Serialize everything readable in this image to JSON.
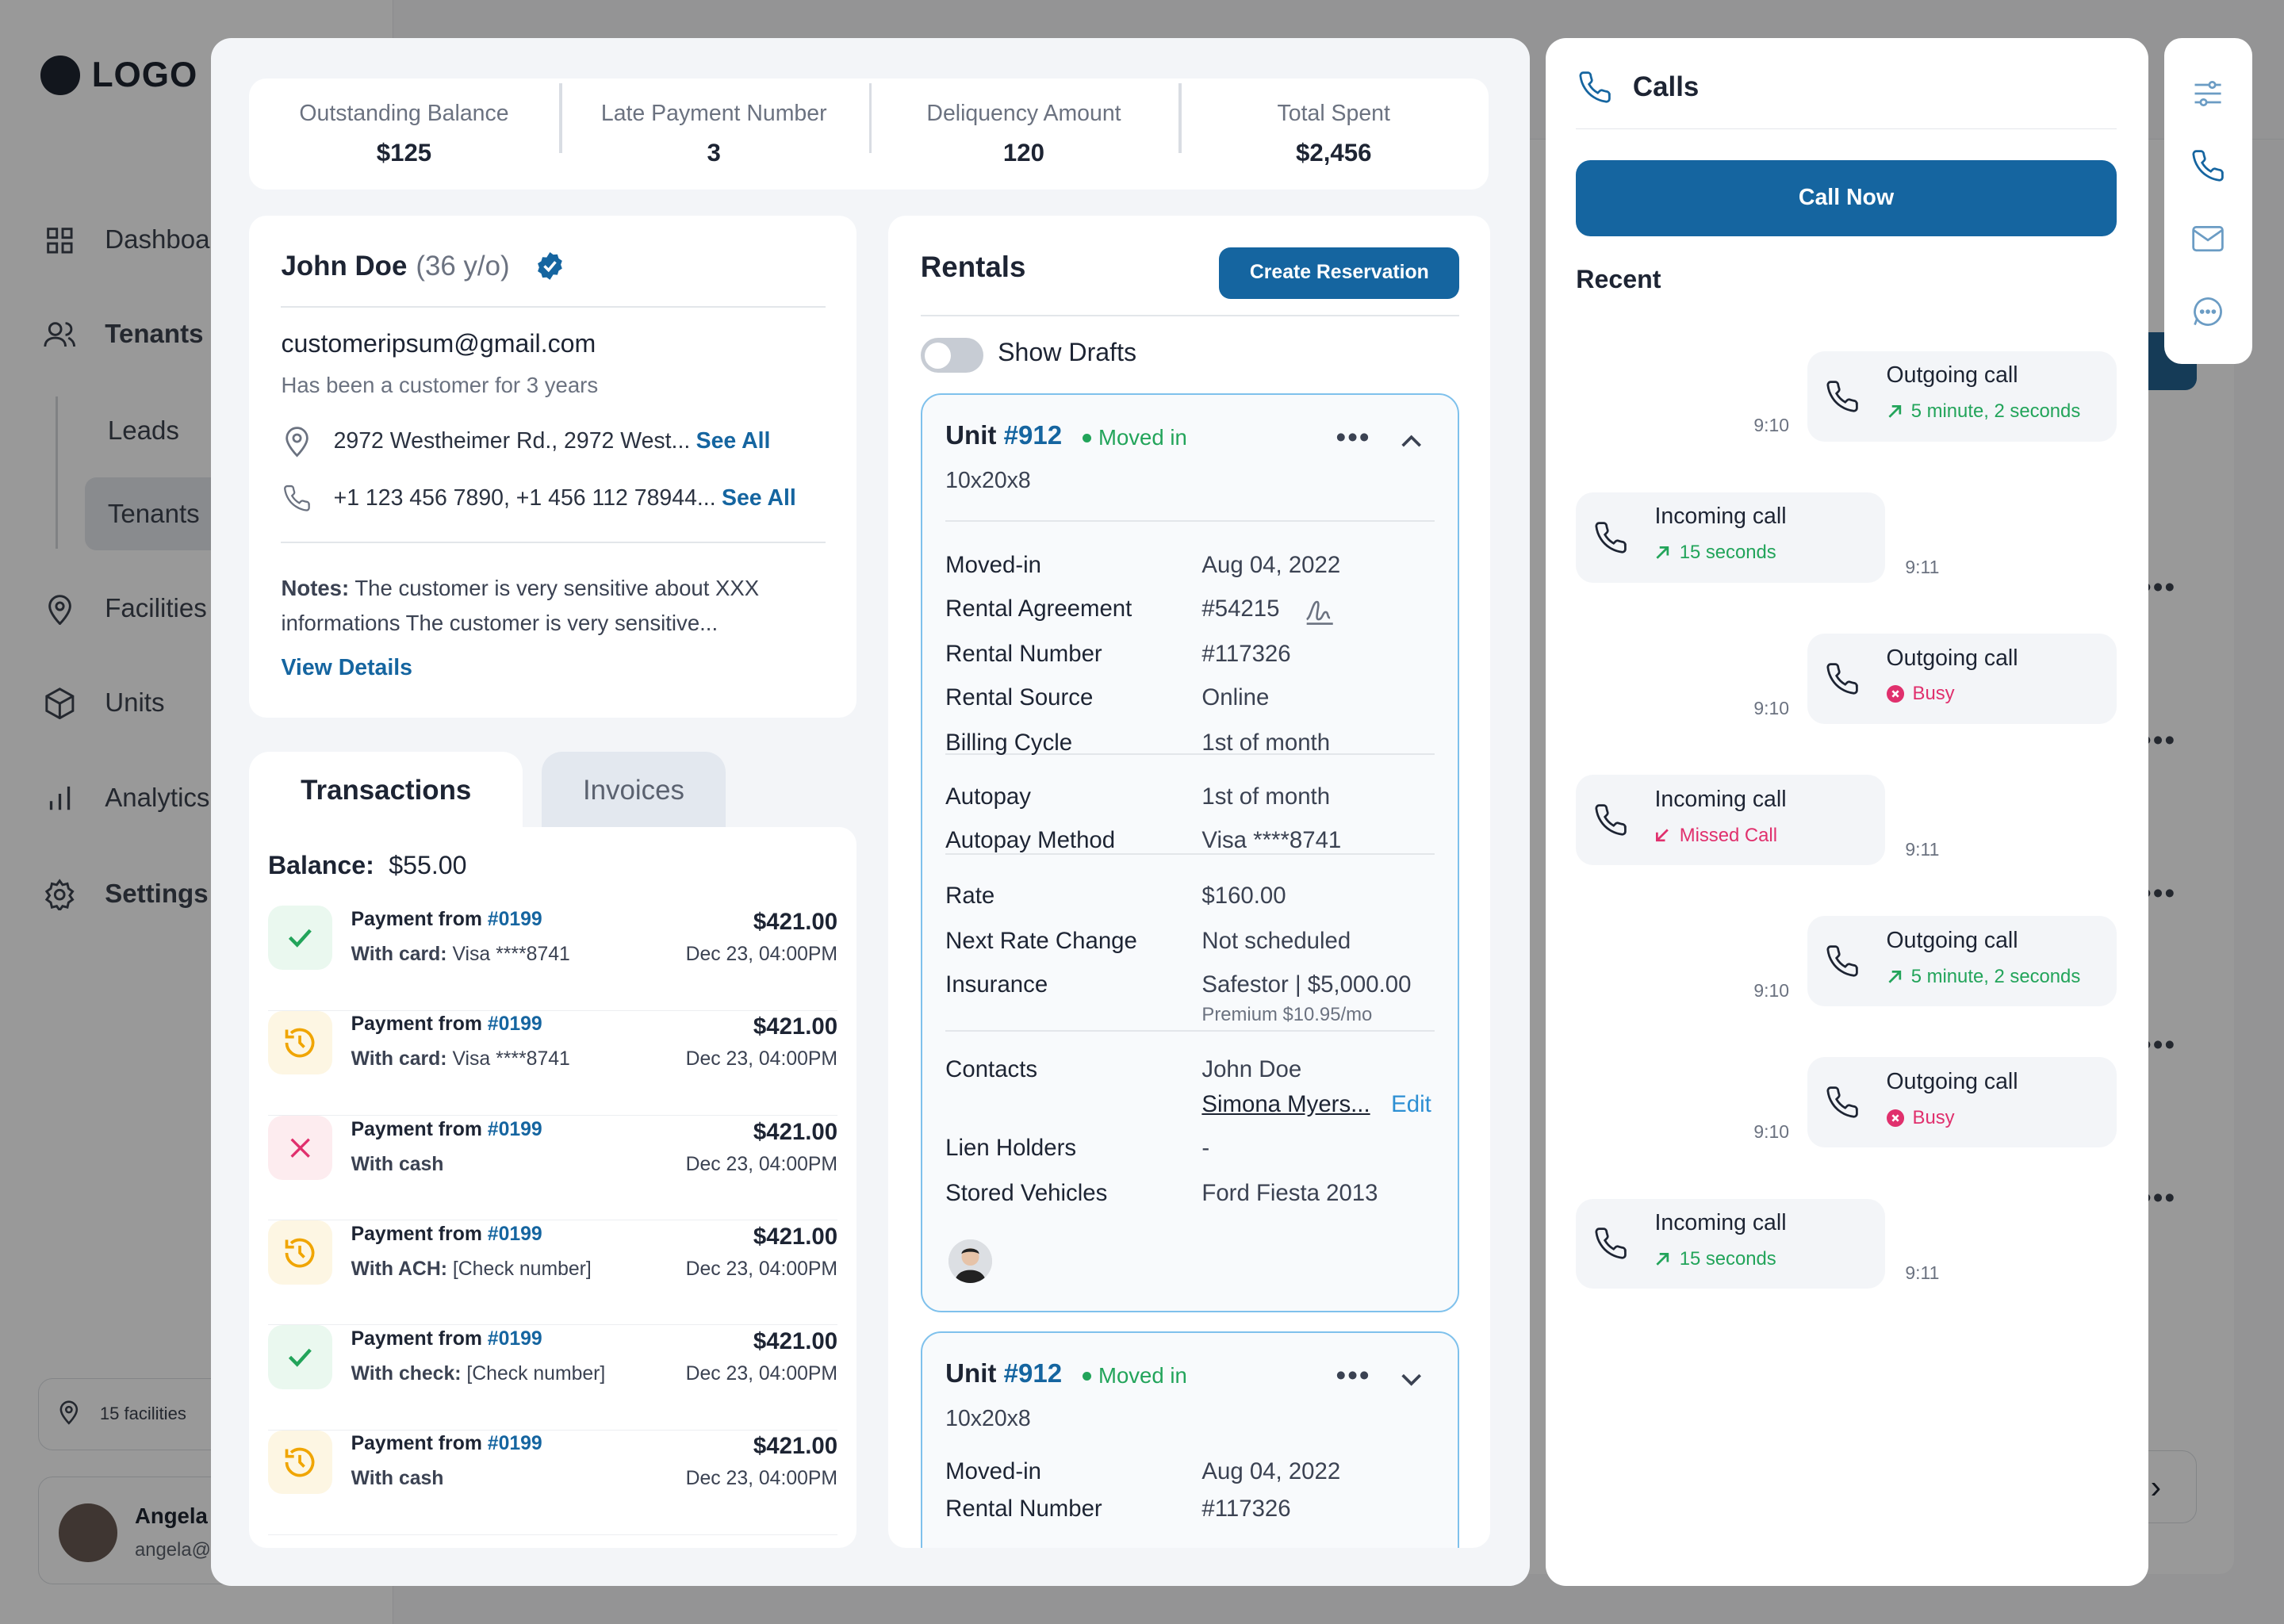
{
  "background": {
    "logo": "LOGO",
    "nav": [
      "Dashboard",
      "Tenants",
      "Facilities",
      "Units",
      "Analytics",
      "Settings"
    ],
    "sub_nav": [
      "Leads",
      "Tenants"
    ],
    "facilities_count": "15 facilities",
    "user_name": "Angela",
    "user_email": "angela@"
  },
  "stats": [
    {
      "label": "Outstanding Balance",
      "value": "$125"
    },
    {
      "label": "Late Payment Number",
      "value": "3"
    },
    {
      "label": "Deliquency Amount",
      "value": "120"
    },
    {
      "label": "Total Spent",
      "value": "$2,456"
    }
  ],
  "profile": {
    "name": "John Doe",
    "age": "(36 y/o)",
    "email": "customeripsum@gmail.com",
    "since": "Has been a customer for 3 years",
    "address": "2972 Westheimer Rd., 2972 West...",
    "phones": "+1 123 456 7890, +1 456 112 78944...",
    "see_all": "See All",
    "notes_label": "Notes:",
    "notes": "The customer is very sensitive about XXX informations The customer is very sensitive...",
    "view_details": "View Details"
  },
  "tabs": {
    "transactions": "Transactions",
    "invoices": "Invoices"
  },
  "transactions": {
    "balance_label": "Balance:",
    "balance": "$55.00",
    "items": [
      {
        "status": "success",
        "title": "Payment from",
        "ref": "#0199",
        "method_label": "With card:",
        "method": "Visa ****8741",
        "amount": "$421.00",
        "date": "Dec 23, 04:00PM"
      },
      {
        "status": "pending",
        "title": "Payment from",
        "ref": "#0199",
        "method_label": "With card:",
        "method": "Visa ****8741",
        "amount": "$421.00",
        "date": "Dec 23, 04:00PM"
      },
      {
        "status": "failed",
        "title": "Payment from",
        "ref": "#0199",
        "method_label": "With cash",
        "method": "",
        "amount": "$421.00",
        "date": "Dec 23, 04:00PM"
      },
      {
        "status": "pending",
        "title": "Payment from",
        "ref": "#0199",
        "method_label": "With ACH:",
        "method": "[Check number]",
        "amount": "$421.00",
        "date": "Dec 23, 04:00PM"
      },
      {
        "status": "success",
        "title": "Payment from",
        "ref": "#0199",
        "method_label": "With check:",
        "method": "[Check number]",
        "amount": "$421.00",
        "date": "Dec 23, 04:00PM"
      },
      {
        "status": "pending",
        "title": "Payment from",
        "ref": "#0199",
        "method_label": "With cash",
        "method": "",
        "amount": "$421.00",
        "date": "Dec 23, 04:00PM"
      }
    ]
  },
  "rentals": {
    "title": "Rentals",
    "create_button": "Create Reservation",
    "show_drafts": "Show Drafts",
    "unit1": {
      "label": "Unit",
      "number": "#912",
      "status": "Moved in",
      "size": "10x20x8",
      "rows": [
        {
          "k": "Moved-in",
          "v": "Aug 04, 2022"
        },
        {
          "k": "Rental Agreement",
          "v": "#54215"
        },
        {
          "k": "Rental Number",
          "v": "#117326"
        },
        {
          "k": "Rental Source",
          "v": "Online"
        },
        {
          "k": "Billing Cycle",
          "v": "1st of month"
        },
        {
          "k": "Autopay",
          "v": "1st of month"
        },
        {
          "k": "Autopay Method",
          "v": "Visa ****8741"
        },
        {
          "k": "Rate",
          "v": "$160.00"
        },
        {
          "k": "Next Rate Change",
          "v": "Not scheduled"
        },
        {
          "k": "Insurance",
          "v": "Safestor | $5,000.00",
          "s": "Premium $10.95/mo"
        },
        {
          "k": "Contacts",
          "v": "John Doe",
          "v2": "Simona Myers...",
          "edit": "Edit"
        },
        {
          "k": "Lien Holders",
          "v": "-"
        },
        {
          "k": "Stored Vehicles",
          "v": "Ford Fiesta 2013"
        }
      ]
    },
    "unit2": {
      "label": "Unit",
      "number": "#912",
      "status": "Moved in",
      "size": "10x20x8",
      "rows": [
        {
          "k": "Moved-in",
          "v": "Aug 04, 2022"
        },
        {
          "k": "Rental Number",
          "v": "#117326"
        }
      ]
    }
  },
  "calls": {
    "title": "Calls",
    "call_now": "Call Now",
    "recent": "Recent",
    "items": [
      {
        "dir": "out",
        "type": "Outgoing call",
        "detail": "5 minute, 2 seconds",
        "state": "ok",
        "time": "9:10"
      },
      {
        "dir": "in",
        "type": "Incoming call",
        "detail": "15 seconds",
        "state": "ok",
        "time": "9:11"
      },
      {
        "dir": "out",
        "type": "Outgoing call",
        "detail": "Busy",
        "state": "busy",
        "time": "9:10"
      },
      {
        "dir": "in",
        "type": "Incoming call",
        "detail": "Missed Call",
        "state": "missed",
        "time": "9:11"
      },
      {
        "dir": "out",
        "type": "Outgoing call",
        "detail": "5 minute, 2 seconds",
        "state": "ok",
        "time": "9:10"
      },
      {
        "dir": "out",
        "type": "Outgoing call",
        "detail": "Busy",
        "state": "busy",
        "time": "9:10"
      },
      {
        "dir": "in",
        "type": "Incoming call",
        "detail": "15 seconds",
        "state": "ok",
        "time": "9:11"
      }
    ]
  },
  "toolbar_icons": [
    "filter-icon",
    "phone-icon",
    "mail-icon",
    "chat-icon"
  ],
  "colors": {
    "primary": "#1565a0",
    "success": "#22a45a",
    "danger": "#e0306d",
    "warning": "#f0a500"
  }
}
